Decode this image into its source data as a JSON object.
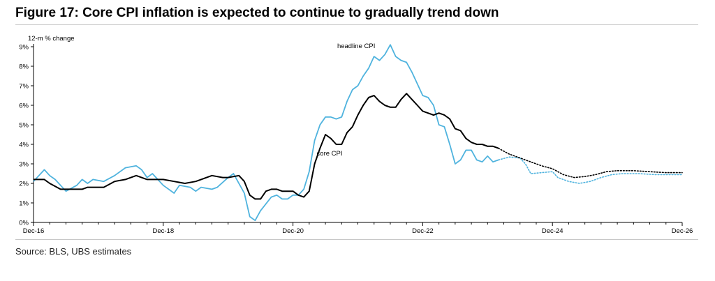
{
  "figure": {
    "title": "Figure 17: Core CPI inflation is expected to continue to gradually trend down",
    "source": "Source: BLS, UBS estimates"
  },
  "chart_data": {
    "type": "line",
    "ylabel": "12-m % change",
    "ylim": [
      0,
      9
    ],
    "yticks": [
      0,
      1,
      2,
      3,
      4,
      5,
      6,
      7,
      8,
      9
    ],
    "ytick_labels": [
      "0%",
      "1%",
      "2%",
      "3%",
      "4%",
      "5%",
      "6%",
      "7%",
      "8%",
      "9%"
    ],
    "xlim": [
      "2016-12",
      "2026-12"
    ],
    "xticks": [
      "2016-12",
      "2018-12",
      "2020-12",
      "2022-12",
      "2024-12",
      "2026-12"
    ],
    "xtick_labels": [
      "Dec-16",
      "Dec-18",
      "Dec-20",
      "Dec-22",
      "Dec-24",
      "Dec-26"
    ],
    "grid": false,
    "colors": {
      "headline": "#4fb3de",
      "core": "#000000"
    },
    "series": [
      {
        "name": "headline CPI",
        "color": "#4fb3de",
        "actual": [
          [
            "2016-12",
            2.1
          ],
          [
            "2017-02",
            2.7
          ],
          [
            "2017-03",
            2.4
          ],
          [
            "2017-04",
            2.2
          ],
          [
            "2017-05",
            1.9
          ],
          [
            "2017-06",
            1.6
          ],
          [
            "2017-08",
            1.9
          ],
          [
            "2017-09",
            2.2
          ],
          [
            "2017-10",
            2.0
          ],
          [
            "2017-11",
            2.2
          ],
          [
            "2018-01",
            2.1
          ],
          [
            "2018-03",
            2.4
          ],
          [
            "2018-05",
            2.8
          ],
          [
            "2018-07",
            2.9
          ],
          [
            "2018-08",
            2.7
          ],
          [
            "2018-09",
            2.3
          ],
          [
            "2018-10",
            2.5
          ],
          [
            "2018-12",
            1.9
          ],
          [
            "2019-02",
            1.5
          ],
          [
            "2019-03",
            1.9
          ],
          [
            "2019-05",
            1.8
          ],
          [
            "2019-06",
            1.6
          ],
          [
            "2019-07",
            1.8
          ],
          [
            "2019-09",
            1.7
          ],
          [
            "2019-10",
            1.8
          ],
          [
            "2019-12",
            2.3
          ],
          [
            "2020-01",
            2.5
          ],
          [
            "2020-03",
            1.5
          ],
          [
            "2020-04",
            0.3
          ],
          [
            "2020-05",
            0.1
          ],
          [
            "2020-06",
            0.6
          ],
          [
            "2020-08",
            1.3
          ],
          [
            "2020-09",
            1.4
          ],
          [
            "2020-10",
            1.2
          ],
          [
            "2020-11",
            1.2
          ],
          [
            "2020-12",
            1.4
          ],
          [
            "2021-01",
            1.4
          ],
          [
            "2021-02",
            1.7
          ],
          [
            "2021-03",
            2.6
          ],
          [
            "2021-04",
            4.2
          ],
          [
            "2021-05",
            5.0
          ],
          [
            "2021-06",
            5.4
          ],
          [
            "2021-07",
            5.4
          ],
          [
            "2021-08",
            5.3
          ],
          [
            "2021-09",
            5.4
          ],
          [
            "2021-10",
            6.2
          ],
          [
            "2021-11",
            6.8
          ],
          [
            "2021-12",
            7.0
          ],
          [
            "2022-01",
            7.5
          ],
          [
            "2022-02",
            7.9
          ],
          [
            "2022-03",
            8.5
          ],
          [
            "2022-04",
            8.3
          ],
          [
            "2022-05",
            8.6
          ],
          [
            "2022-06",
            9.1
          ],
          [
            "2022-07",
            8.5
          ],
          [
            "2022-08",
            8.3
          ],
          [
            "2022-09",
            8.2
          ],
          [
            "2022-10",
            7.7
          ],
          [
            "2022-11",
            7.1
          ],
          [
            "2022-12",
            6.5
          ],
          [
            "2023-01",
            6.4
          ],
          [
            "2023-02",
            6.0
          ],
          [
            "2023-03",
            5.0
          ],
          [
            "2023-04",
            4.9
          ],
          [
            "2023-05",
            4.0
          ],
          [
            "2023-06",
            3.0
          ],
          [
            "2023-07",
            3.2
          ],
          [
            "2023-08",
            3.7
          ],
          [
            "2023-09",
            3.7
          ],
          [
            "2023-10",
            3.2
          ],
          [
            "2023-11",
            3.1
          ],
          [
            "2023-12",
            3.4
          ],
          [
            "2024-01",
            3.1
          ],
          [
            "2024-02",
            3.2
          ]
        ],
        "forecast": [
          [
            "2024-02",
            3.2
          ],
          [
            "2024-04",
            3.35
          ],
          [
            "2024-06",
            3.3
          ],
          [
            "2024-07",
            3.0
          ],
          [
            "2024-08",
            2.5
          ],
          [
            "2024-10",
            2.55
          ],
          [
            "2024-12",
            2.6
          ],
          [
            "2025-01",
            2.3
          ],
          [
            "2025-03",
            2.1
          ],
          [
            "2025-05",
            2.0
          ],
          [
            "2025-07",
            2.1
          ],
          [
            "2025-09",
            2.3
          ],
          [
            "2025-11",
            2.45
          ],
          [
            "2026-01",
            2.5
          ],
          [
            "2026-04",
            2.5
          ],
          [
            "2026-07",
            2.45
          ],
          [
            "2026-12",
            2.45
          ]
        ]
      },
      {
        "name": "core CPI",
        "color": "#000000",
        "actual": [
          [
            "2016-12",
            2.2
          ],
          [
            "2017-02",
            2.2
          ],
          [
            "2017-03",
            2.0
          ],
          [
            "2017-05",
            1.7
          ],
          [
            "2017-07",
            1.7
          ],
          [
            "2017-09",
            1.7
          ],
          [
            "2017-10",
            1.8
          ],
          [
            "2017-12",
            1.8
          ],
          [
            "2018-01",
            1.8
          ],
          [
            "2018-03",
            2.1
          ],
          [
            "2018-05",
            2.2
          ],
          [
            "2018-07",
            2.4
          ],
          [
            "2018-09",
            2.2
          ],
          [
            "2018-11",
            2.2
          ],
          [
            "2018-12",
            2.2
          ],
          [
            "2019-02",
            2.1
          ],
          [
            "2019-04",
            2.0
          ],
          [
            "2019-06",
            2.1
          ],
          [
            "2019-07",
            2.2
          ],
          [
            "2019-09",
            2.4
          ],
          [
            "2019-11",
            2.3
          ],
          [
            "2019-12",
            2.3
          ],
          [
            "2020-02",
            2.4
          ],
          [
            "2020-03",
            2.1
          ],
          [
            "2020-04",
            1.4
          ],
          [
            "2020-05",
            1.2
          ],
          [
            "2020-06",
            1.2
          ],
          [
            "2020-07",
            1.6
          ],
          [
            "2020-08",
            1.7
          ],
          [
            "2020-09",
            1.7
          ],
          [
            "2020-10",
            1.6
          ],
          [
            "2020-11",
            1.6
          ],
          [
            "2020-12",
            1.6
          ],
          [
            "2021-01",
            1.4
          ],
          [
            "2021-02",
            1.3
          ],
          [
            "2021-03",
            1.6
          ],
          [
            "2021-04",
            3.0
          ],
          [
            "2021-05",
            3.8
          ],
          [
            "2021-06",
            4.5
          ],
          [
            "2021-07",
            4.3
          ],
          [
            "2021-08",
            4.0
          ],
          [
            "2021-09",
            4.0
          ],
          [
            "2021-10",
            4.6
          ],
          [
            "2021-11",
            4.9
          ],
          [
            "2021-12",
            5.5
          ],
          [
            "2022-01",
            6.0
          ],
          [
            "2022-02",
            6.4
          ],
          [
            "2022-03",
            6.5
          ],
          [
            "2022-04",
            6.2
          ],
          [
            "2022-05",
            6.0
          ],
          [
            "2022-06",
            5.9
          ],
          [
            "2022-07",
            5.9
          ],
          [
            "2022-08",
            6.3
          ],
          [
            "2022-09",
            6.6
          ],
          [
            "2022-10",
            6.3
          ],
          [
            "2022-11",
            6.0
          ],
          [
            "2022-12",
            5.7
          ],
          [
            "2023-01",
            5.6
          ],
          [
            "2023-02",
            5.5
          ],
          [
            "2023-03",
            5.6
          ],
          [
            "2023-04",
            5.5
          ],
          [
            "2023-05",
            5.3
          ],
          [
            "2023-06",
            4.8
          ],
          [
            "2023-07",
            4.7
          ],
          [
            "2023-08",
            4.3
          ],
          [
            "2023-09",
            4.1
          ],
          [
            "2023-10",
            4.0
          ],
          [
            "2023-11",
            4.0
          ],
          [
            "2023-12",
            3.9
          ],
          [
            "2024-01",
            3.9
          ],
          [
            "2024-02",
            3.8
          ]
        ],
        "forecast": [
          [
            "2024-02",
            3.8
          ],
          [
            "2024-04",
            3.5
          ],
          [
            "2024-06",
            3.3
          ],
          [
            "2024-08",
            3.1
          ],
          [
            "2024-10",
            2.9
          ],
          [
            "2024-12",
            2.75
          ],
          [
            "2025-02",
            2.45
          ],
          [
            "2025-04",
            2.3
          ],
          [
            "2025-06",
            2.35
          ],
          [
            "2025-08",
            2.45
          ],
          [
            "2025-10",
            2.6
          ],
          [
            "2025-12",
            2.65
          ],
          [
            "2026-03",
            2.65
          ],
          [
            "2026-06",
            2.6
          ],
          [
            "2026-09",
            2.55
          ],
          [
            "2026-12",
            2.55
          ]
        ]
      }
    ],
    "annotations": [
      {
        "text": "headline CPI",
        "series": "headline CPI",
        "at": [
          "2022-06",
          9.1
        ]
      },
      {
        "text": "core CPI",
        "series": "core CPI",
        "at": [
          "2021-08",
          4.0
        ]
      }
    ]
  }
}
